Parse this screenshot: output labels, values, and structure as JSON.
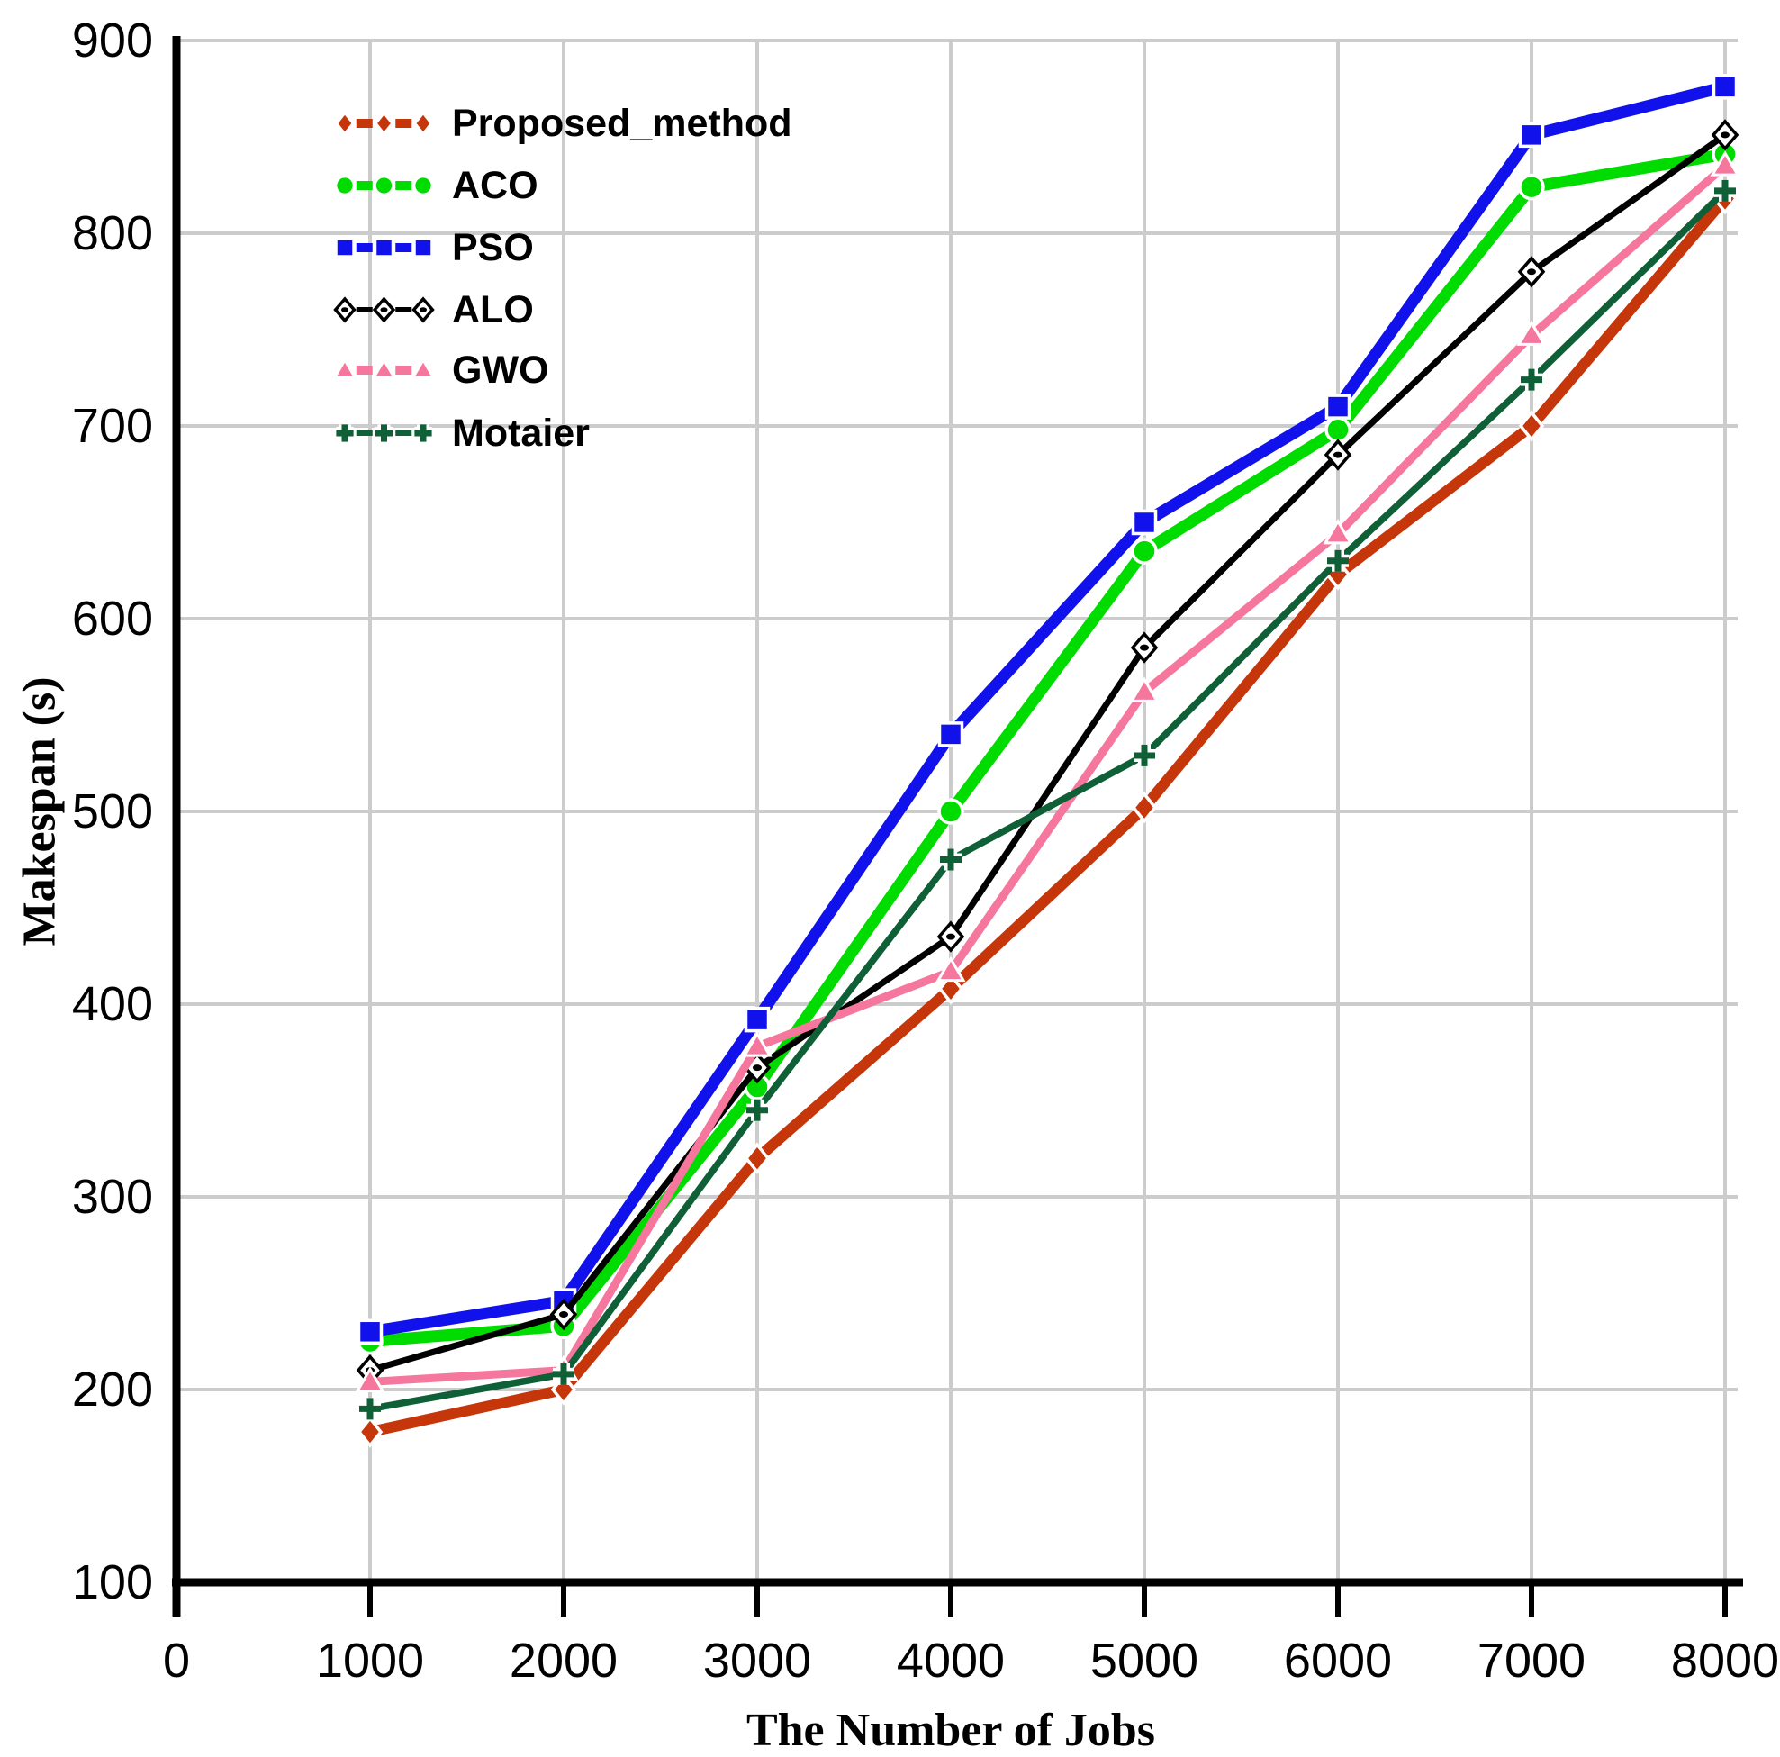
{
  "chart_data": {
    "type": "line",
    "title": "",
    "xlabel": "The Number of Jobs",
    "ylabel": "Makespan (s)",
    "xlim": [
      0,
      8000
    ],
    "ylim": [
      100,
      900
    ],
    "x_ticks": [
      0,
      1000,
      2000,
      3000,
      4000,
      5000,
      6000,
      7000,
      8000
    ],
    "y_ticks": [
      100,
      200,
      300,
      400,
      500,
      600,
      700,
      800,
      900
    ],
    "grid": true,
    "grid_color": "#CCCCCC",
    "axis_color": "#000000",
    "legend_position": "top-left",
    "x": [
      1000,
      2000,
      3000,
      4000,
      5000,
      6000,
      7000,
      8000
    ],
    "series": [
      {
        "name": "Proposed_method",
        "color": "#C5370B",
        "marker": "diamond",
        "values": [
          178,
          200,
          320,
          408,
          502,
          623,
          700,
          818
        ]
      },
      {
        "name": "ACO",
        "color": "#00DC00",
        "marker": "circle",
        "values": [
          225,
          233,
          357,
          500,
          635,
          698,
          824,
          841
        ]
      },
      {
        "name": "PSO",
        "color": "#1111EC",
        "marker": "square",
        "values": [
          230,
          246,
          392,
          540,
          650,
          710,
          851,
          876
        ]
      },
      {
        "name": "ALO",
        "color": "#000000",
        "marker": "open-diamond-dot",
        "values": [
          210,
          239,
          367,
          435,
          585,
          685,
          780,
          851
        ]
      },
      {
        "name": "GWO",
        "color": "#F5779E",
        "marker": "triangle",
        "values": [
          204,
          210,
          378,
          417,
          562,
          644,
          747,
          835
        ]
      },
      {
        "name": "Motaier",
        "color": "#0F5F37",
        "marker": "plus",
        "values": [
          190,
          208,
          345,
          475,
          529,
          630,
          724,
          822
        ]
      }
    ]
  }
}
